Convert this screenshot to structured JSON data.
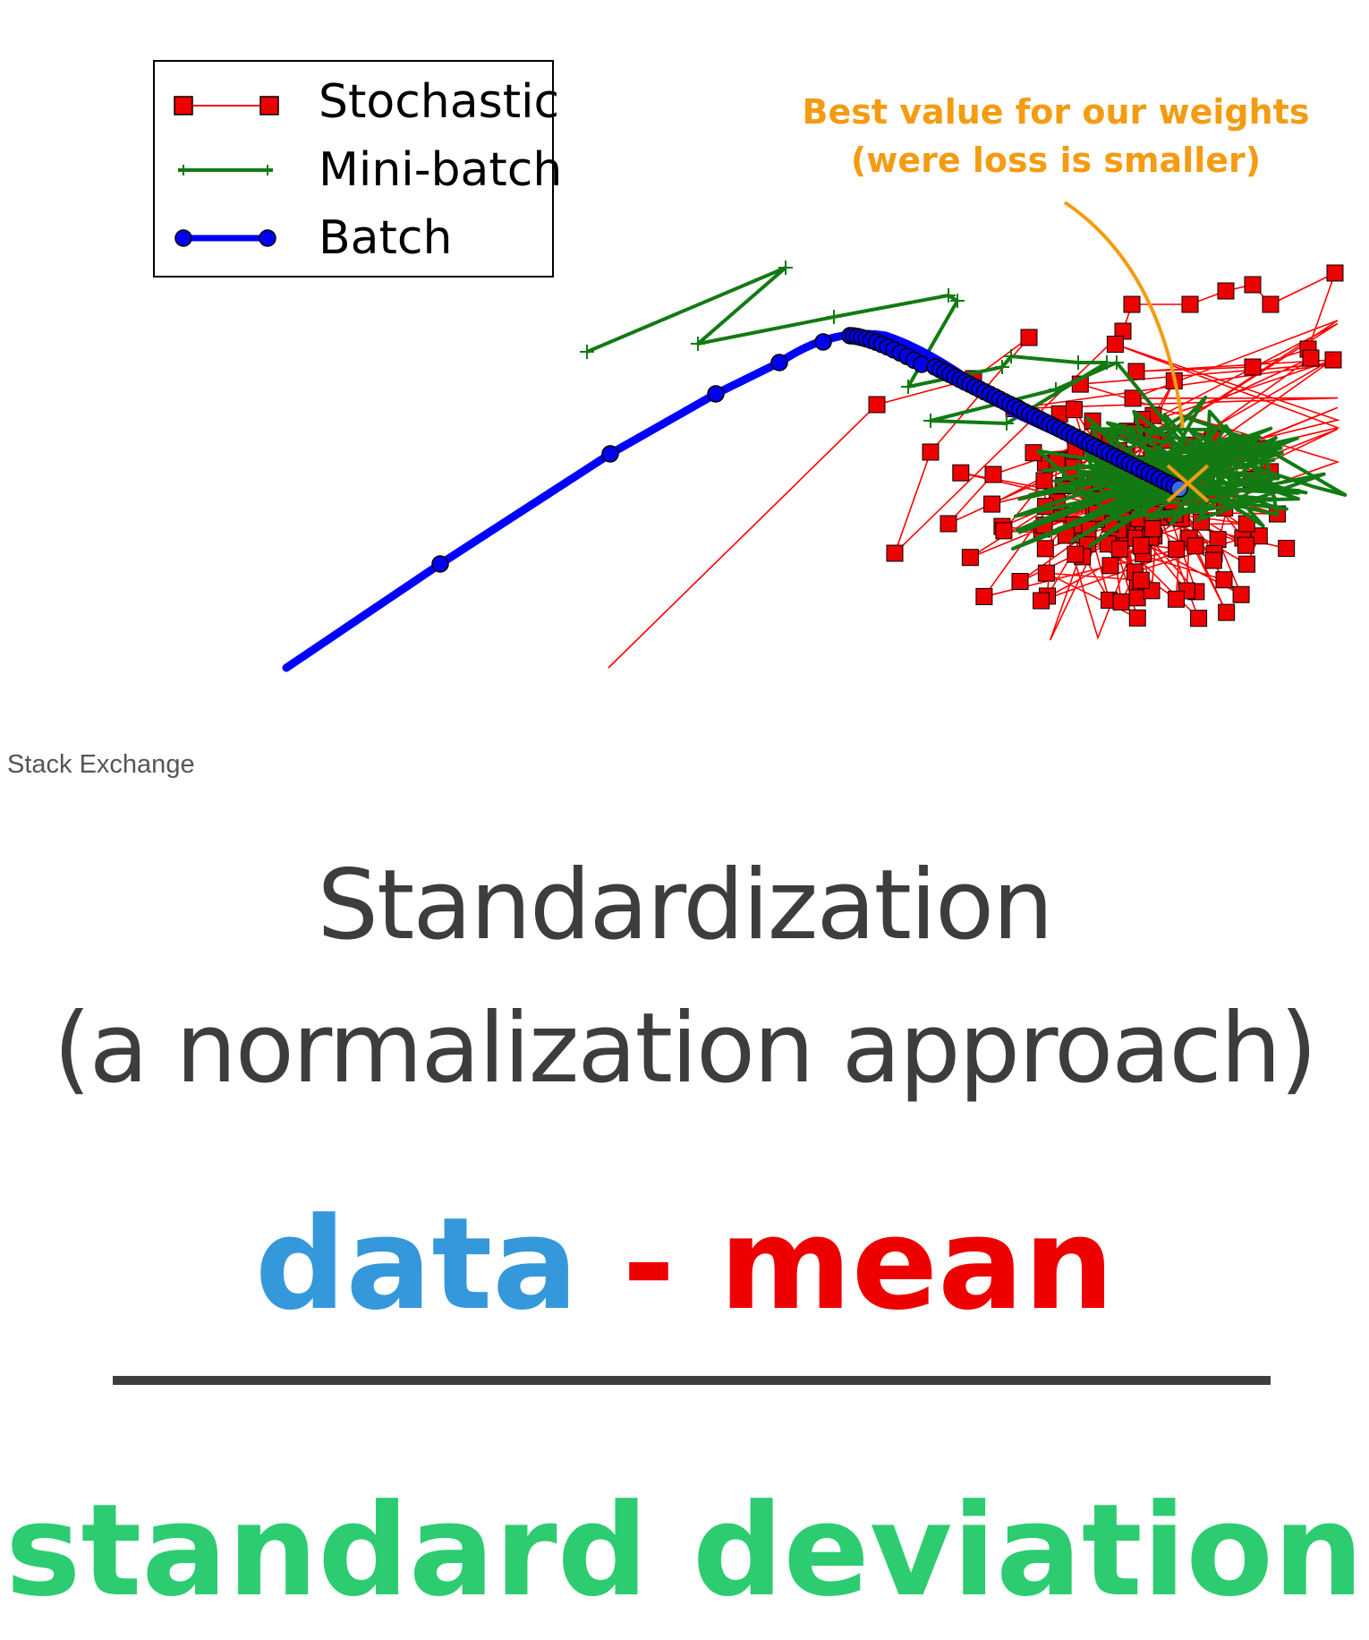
{
  "legend": {
    "items": [
      {
        "label": "Stochastic",
        "line_color": "#ff0000",
        "marker_color": "#ee0000",
        "marker": "square"
      },
      {
        "label": "Mini-batch",
        "line_color": "#137a13",
        "marker_color": "#137a13",
        "marker": "plus"
      },
      {
        "label": "Batch",
        "line_color": "#0000ff",
        "marker_color": "#0000ee",
        "marker": "circle"
      }
    ]
  },
  "annotation": {
    "line1": "Best value for our weights",
    "line2": "(were loss is smaller)",
    "color": "#f39c12"
  },
  "caption": {
    "text": "Stack Exchange"
  },
  "title": {
    "line1": "Standardization",
    "line2": "(a normalization approach)",
    "color": "#3d3d3d"
  },
  "formula": {
    "numerator_left": "data",
    "operator": " - ",
    "numerator_right": "mean",
    "denominator": "standard deviation",
    "colors": {
      "data": "#3498db",
      "mean": "#ee0000",
      "denominator": "#2ecc71",
      "bar": "#3d3d3d"
    }
  }
}
